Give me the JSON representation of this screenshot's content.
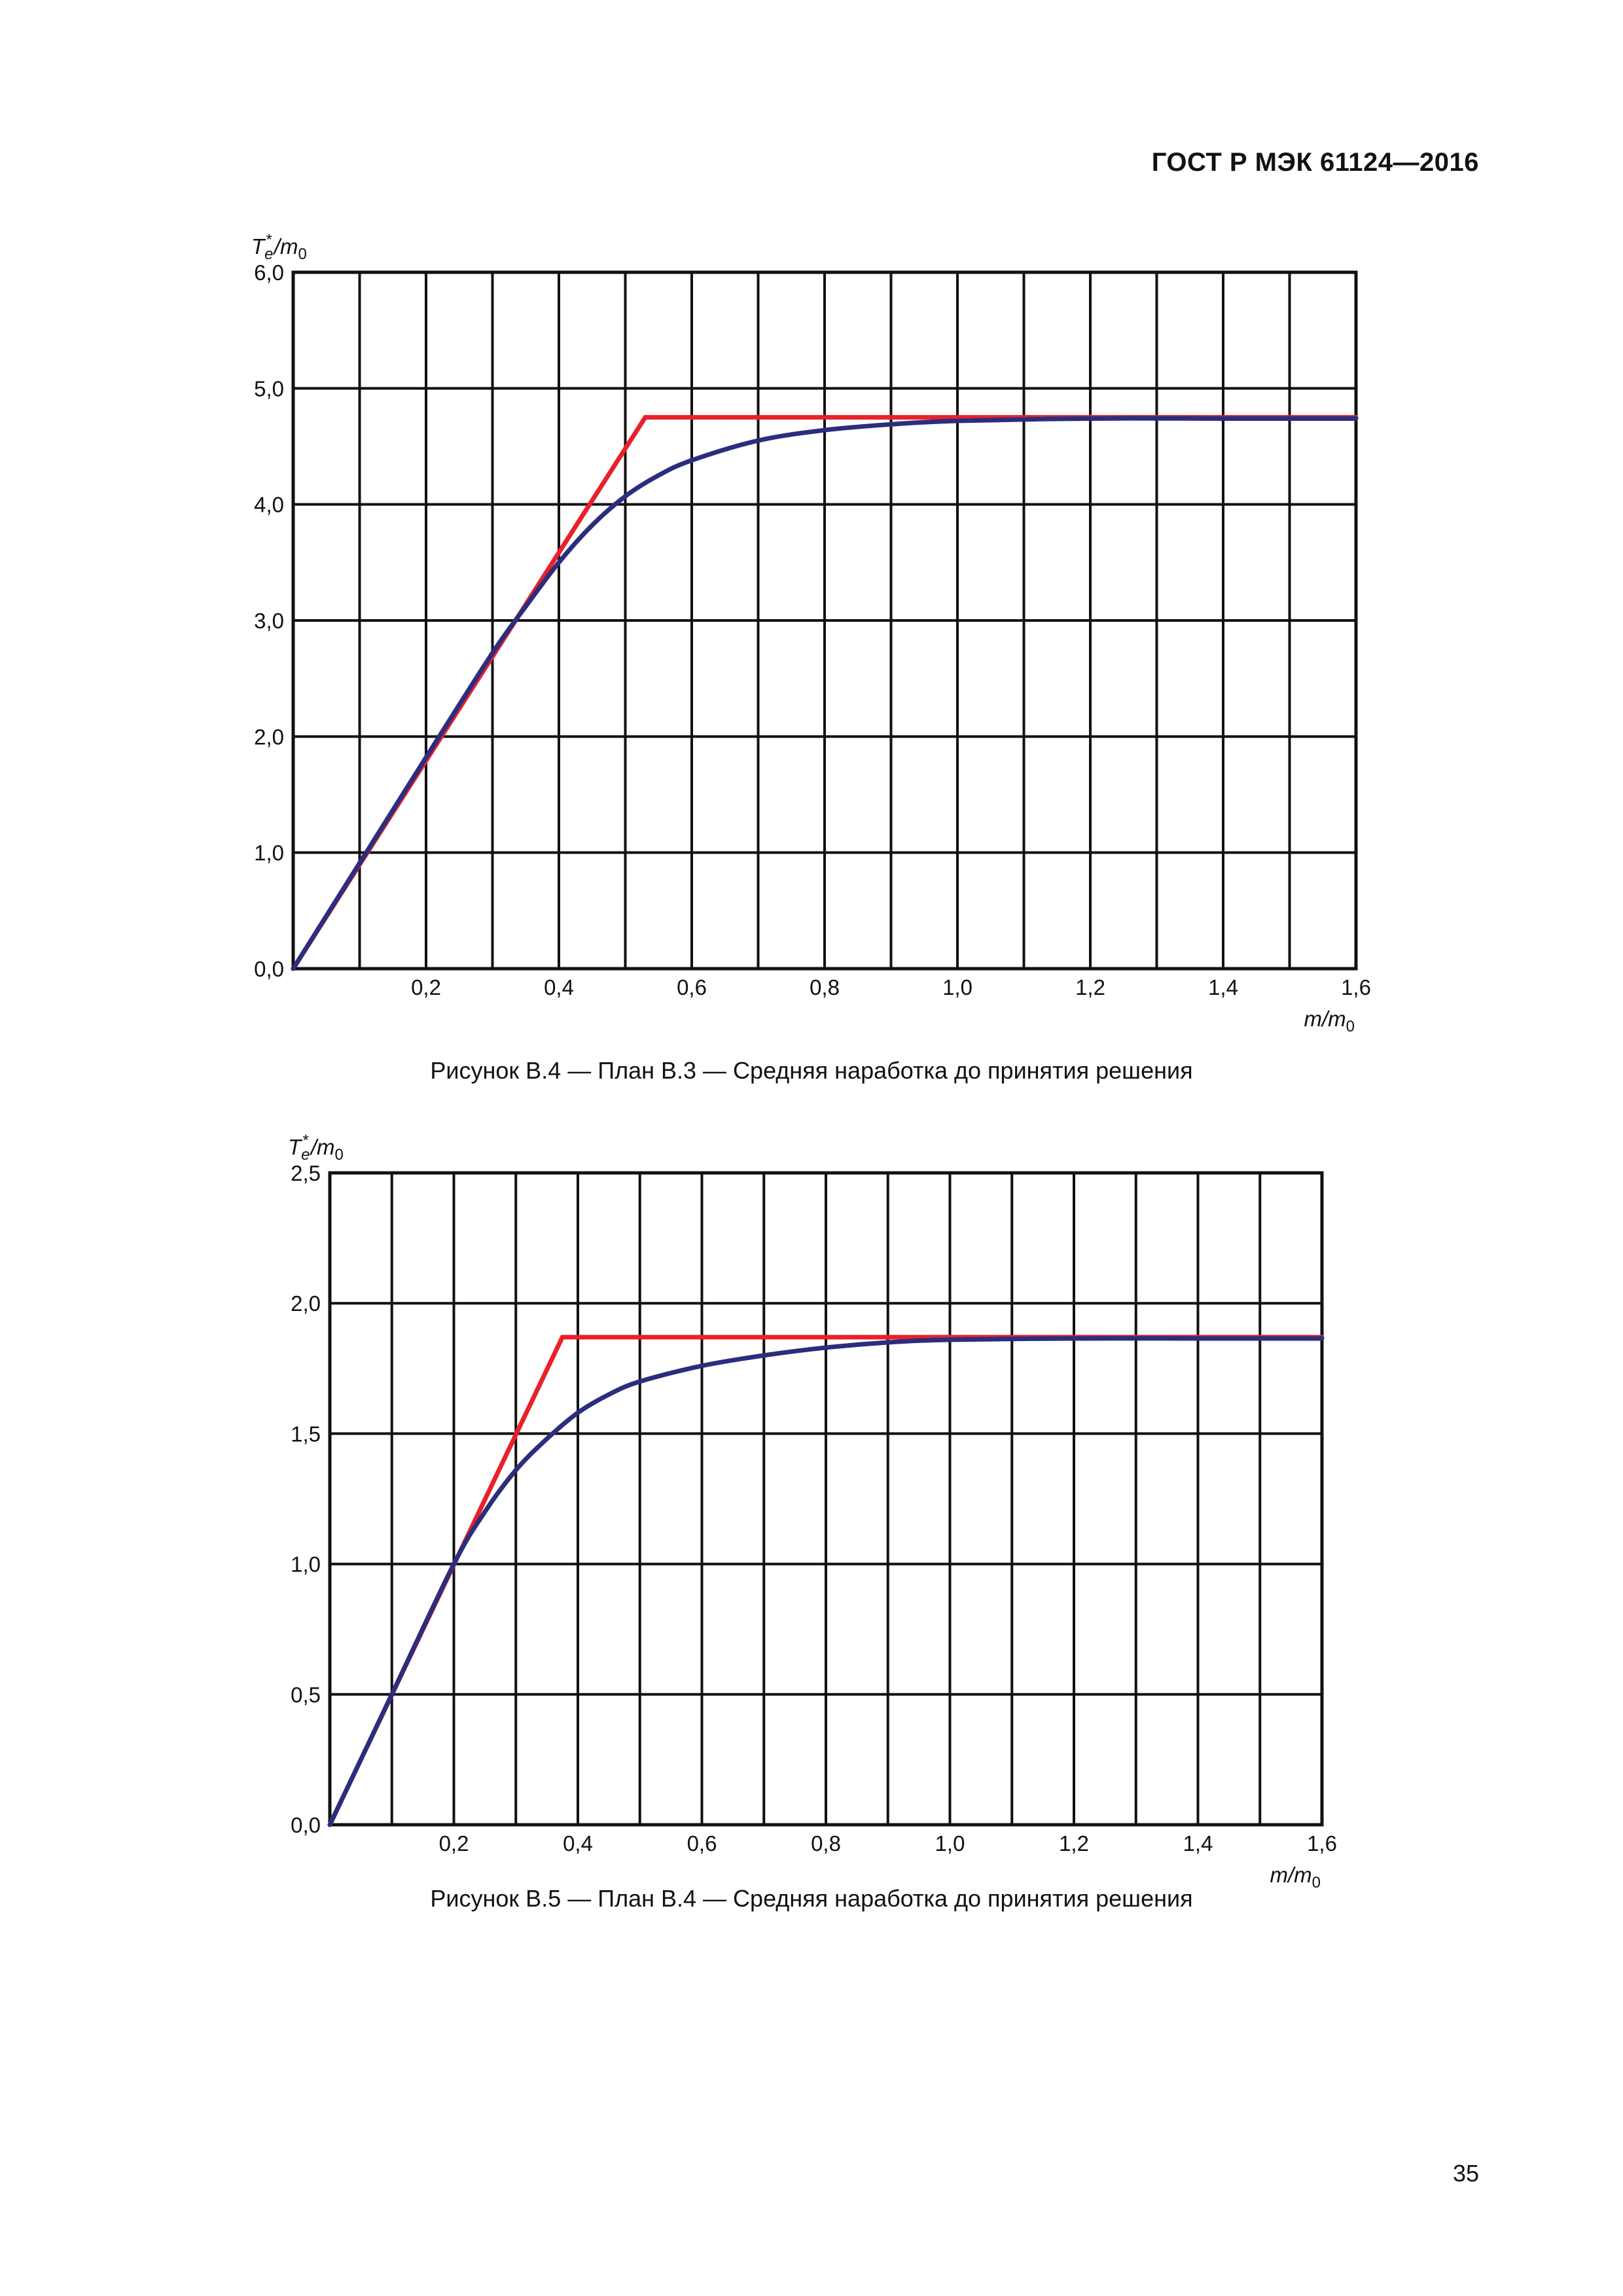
{
  "header": {
    "standard": "ГОСТ Р МЭК 61124—2016"
  },
  "page_number": "35",
  "figures": [
    {
      "caption": "Рисунок В.4 — План В.3 — Средняя наработка до принятия решения"
    },
    {
      "caption": "Рисунок В.5 — План В.4 — Средняя наработка до принятия решения"
    }
  ],
  "chart_data": [
    {
      "type": "line",
      "title": "",
      "ylabel": "Te*/m0",
      "xlabel": "m/m0",
      "xlim": [
        0,
        1.6
      ],
      "ylim": [
        0,
        6.0
      ],
      "xticks": [
        0.2,
        0.4,
        0.6,
        0.8,
        1.0,
        1.2,
        1.4,
        1.6
      ],
      "xtick_labels": [
        "0,2",
        "0,4",
        "0,6",
        "0,8",
        "1,0",
        "1,2",
        "1,4",
        "1,6"
      ],
      "yticks": [
        0,
        1,
        2,
        3,
        4,
        5,
        6
      ],
      "ytick_labels": [
        "0,0",
        "1,0",
        "2,0",
        "3,0",
        "4,0",
        "5,0",
        "6,0"
      ],
      "grid": true,
      "x_gridlines": [
        0,
        0.1,
        0.2,
        0.3,
        0.4,
        0.5,
        0.6,
        0.7,
        0.8,
        0.9,
        1.0,
        1.1,
        1.2,
        1.3,
        1.4,
        1.5,
        1.6
      ],
      "y_gridlines": [
        0,
        1,
        2,
        3,
        4,
        5,
        6
      ],
      "colors": {
        "red": "#e8212a",
        "blue": "#2b2d7e"
      },
      "series": [
        {
          "color": "#e8212a",
          "x": [
            0,
            0.53,
            1.6
          ],
          "y": [
            0,
            4.75,
            4.75
          ]
        },
        {
          "color": "#2b2d7e",
          "x": [
            0,
            0.1,
            0.2,
            0.3,
            0.35,
            0.4,
            0.45,
            0.5,
            0.55,
            0.6,
            0.7,
            0.8,
            0.9,
            1.0,
            1.2,
            1.4,
            1.6
          ],
          "y": [
            0,
            0.91,
            1.82,
            2.72,
            3.12,
            3.5,
            3.82,
            4.07,
            4.25,
            4.38,
            4.55,
            4.64,
            4.69,
            4.72,
            4.74,
            4.74,
            4.74
          ]
        }
      ]
    },
    {
      "type": "line",
      "title": "",
      "ylabel": "Te*/m0",
      "xlabel": "m/m0",
      "xlim": [
        0,
        1.6
      ],
      "ylim": [
        0,
        2.5
      ],
      "xticks": [
        0.2,
        0.4,
        0.6,
        0.8,
        1.0,
        1.2,
        1.4,
        1.6
      ],
      "xtick_labels": [
        "0,2",
        "0,4",
        "0,6",
        "0,8",
        "1,0",
        "1,2",
        "1,4",
        "1,6"
      ],
      "yticks": [
        0,
        0.5,
        1.0,
        1.5,
        2.0,
        2.5
      ],
      "ytick_labels": [
        "0,0",
        "0,5",
        "1,0",
        "1,5",
        "2,0",
        "2,5"
      ],
      "grid": true,
      "x_gridlines": [
        0,
        0.1,
        0.2,
        0.3,
        0.4,
        0.5,
        0.6,
        0.7,
        0.8,
        0.9,
        1.0,
        1.1,
        1.2,
        1.3,
        1.4,
        1.5,
        1.6
      ],
      "y_gridlines": [
        0,
        0.5,
        1.0,
        1.5,
        2.0,
        2.5
      ],
      "colors": {
        "red": "#e8212a",
        "blue": "#2b2d7e"
      },
      "series": [
        {
          "color": "#e8212a",
          "x": [
            0,
            0.375,
            1.6
          ],
          "y": [
            0,
            1.87,
            1.87
          ]
        },
        {
          "color": "#2b2d7e",
          "x": [
            0,
            0.1,
            0.2,
            0.25,
            0.3,
            0.35,
            0.4,
            0.45,
            0.5,
            0.6,
            0.7,
            0.8,
            0.9,
            1.0,
            1.2,
            1.4,
            1.6
          ],
          "y": [
            0,
            0.5,
            1.0,
            1.2,
            1.36,
            1.48,
            1.58,
            1.65,
            1.7,
            1.76,
            1.8,
            1.83,
            1.85,
            1.86,
            1.865,
            1.865,
            1.865
          ]
        }
      ]
    }
  ]
}
